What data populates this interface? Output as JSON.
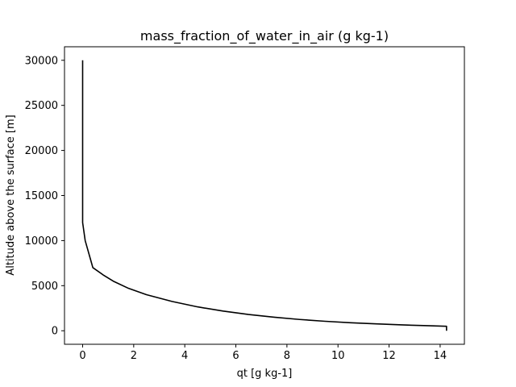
{
  "chart_data": {
    "type": "line",
    "title": "mass_fraction_of_water_in_air (g kg-1)",
    "xlabel": "qt [g kg-1]",
    "ylabel": "Altitude above the surface [m]",
    "xlim": [
      -0.71,
      14.95
    ],
    "ylim": [
      -1500,
      31500
    ],
    "xticks": [
      0,
      2,
      4,
      6,
      8,
      10,
      12,
      14
    ],
    "yticks": [
      0,
      5000,
      10000,
      15000,
      20000,
      25000,
      30000
    ],
    "grid": false,
    "legend": "none",
    "series": [
      {
        "color": "#000000",
        "points": [
          [
            14.25,
            0
          ],
          [
            14.25,
            500
          ],
          [
            13.5,
            560
          ],
          [
            12.5,
            650
          ],
          [
            11.5,
            760
          ],
          [
            10.5,
            890
          ],
          [
            9.5,
            1050
          ],
          [
            8.5,
            1250
          ],
          [
            7.5,
            1500
          ],
          [
            6.5,
            1800
          ],
          [
            5.5,
            2180
          ],
          [
            4.5,
            2650
          ],
          [
            3.5,
            3250
          ],
          [
            2.5,
            4000
          ],
          [
            1.8,
            4700
          ],
          [
            1.2,
            5500
          ],
          [
            0.8,
            6200
          ],
          [
            0.4,
            7000
          ],
          [
            0.3,
            8000
          ],
          [
            0.2,
            9000
          ],
          [
            0.1,
            10000
          ],
          [
            0.0,
            12000
          ],
          [
            0.0,
            30000
          ]
        ]
      }
    ]
  }
}
